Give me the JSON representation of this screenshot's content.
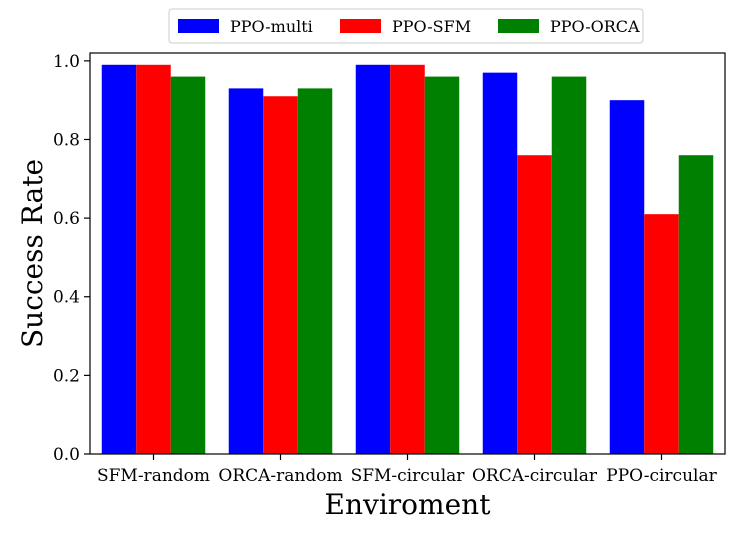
{
  "chart_data": {
    "type": "bar",
    "title": "",
    "xlabel": "Enviroment",
    "ylabel": "Success Rate",
    "categories": [
      "SFM-random",
      "ORCA-random",
      "SFM-circular",
      "ORCA-circular",
      "PPO-circular"
    ],
    "series": [
      {
        "name": "PPO-multi",
        "color": "#0000ff",
        "values": [
          0.99,
          0.93,
          0.99,
          0.97,
          0.9
        ]
      },
      {
        "name": "PPO-SFM",
        "color": "#ff0000",
        "values": [
          0.99,
          0.91,
          0.99,
          0.76,
          0.61
        ]
      },
      {
        "name": "PPO-ORCA",
        "color": "#008000",
        "values": [
          0.96,
          0.93,
          0.96,
          0.96,
          0.76
        ]
      }
    ],
    "ylim": [
      0.0,
      1.02
    ],
    "yticks": [
      0.0,
      0.2,
      0.4,
      0.6,
      0.8,
      1.0
    ],
    "ytick_labels": [
      "0.0",
      "0.2",
      "0.4",
      "0.6",
      "0.8",
      "1.0"
    ],
    "grid": false,
    "legend_position": "top-center"
  }
}
